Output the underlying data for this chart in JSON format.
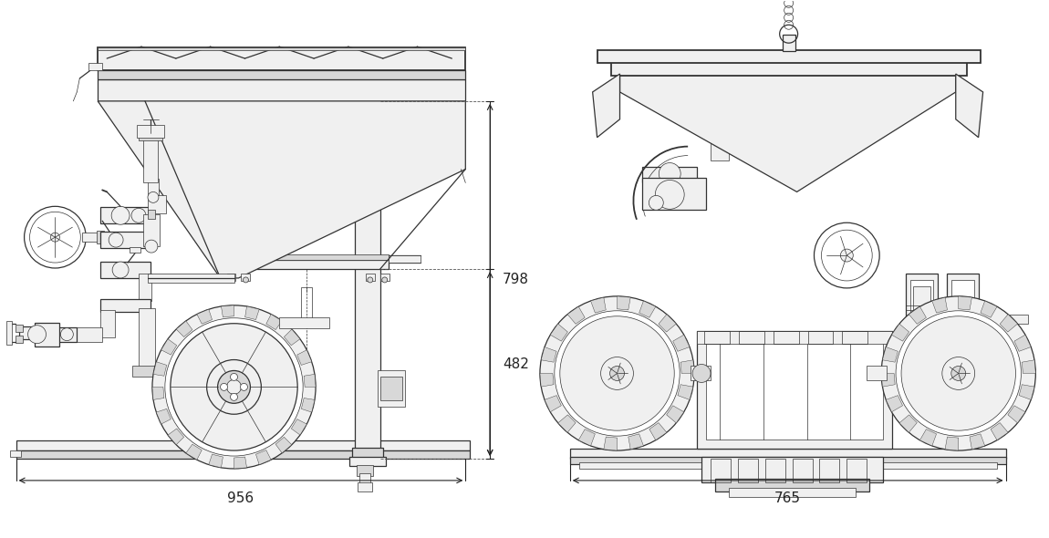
{
  "bg_color": "#ffffff",
  "line_color": "#333333",
  "dim_color": "#222222",
  "fill_light": "#f0f0f0",
  "fill_med": "#d8d8d8",
  "fill_dark": "#aaaaaa",
  "lw_main": 0.9,
  "lw_thick": 1.3,
  "lw_thin": 0.5,
  "lw_dim": 0.8,
  "dim_956": "956",
  "dim_765": "765",
  "dim_798": "798",
  "dim_482": "482",
  "font_size": 11
}
